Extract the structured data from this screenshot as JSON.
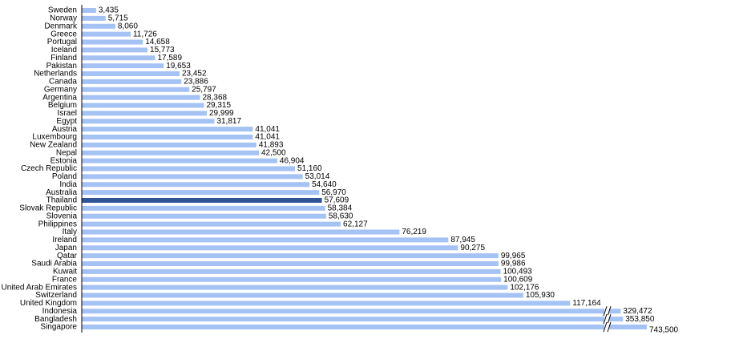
{
  "chart_data": {
    "type": "bar",
    "orientation": "horizontal",
    "categories": [
      "Sweden",
      "Norway",
      "Denmark",
      "Greece",
      "Portugal",
      "Iceland",
      "Finland",
      "Pakistan",
      "Netherlands",
      "Canada",
      "Germany",
      "Argentina",
      "Belgium",
      "Israel",
      "Egypt",
      "Austria",
      "Luxembourg",
      "New Zealand",
      "Nepal",
      "Estonia",
      "Czech Republic",
      "Poland",
      "India",
      "Australia",
      "Thailand",
      "Slovak Republic",
      "Slovenia",
      "Philippines",
      "Italy",
      "Ireland",
      "Japan",
      "Qatar",
      "Saudi Arabia",
      "Kuwait",
      "France",
      "United Arab Emirates",
      "Switzerland",
      "United Kingdom",
      "Indonesia",
      "Bangladesh",
      "Singapore"
    ],
    "values": [
      3435,
      5715,
      8060,
      11726,
      14658,
      15773,
      17589,
      19653,
      23452,
      23886,
      25797,
      28368,
      29315,
      29999,
      31817,
      41041,
      41041,
      41893,
      42500,
      46904,
      51160,
      53014,
      54640,
      56970,
      57609,
      58384,
      58630,
      62127,
      76219,
      87945,
      90275,
      99965,
      99986,
      100493,
      100609,
      102176,
      105930,
      117164,
      329472,
      353850,
      743500
    ],
    "value_labels": [
      "3,435",
      "5,715",
      "8,060",
      "11,726",
      "14,658",
      "15,773",
      "17,589",
      "19,653",
      "23,452",
      "23,886",
      "25,797",
      "28,368",
      "29,315",
      "29,999",
      "31,817",
      "41,041",
      "41,041",
      "41,893",
      "42,500",
      "46,904",
      "51,160",
      "53,014",
      "54,640",
      "56,970",
      "57,609",
      "58,384",
      "58,630",
      "62,127",
      "76,219",
      "87,945",
      "90,275",
      "99,965",
      "99,986",
      "100,493",
      "100,609",
      "102,176",
      "105,930",
      "117,164",
      "329,472",
      "353,850",
      "743,500"
    ],
    "colors": [
      "#a4c2f4",
      "#a4c2f4",
      "#a4c2f4",
      "#a4c2f4",
      "#a4c2f4",
      "#a4c2f4",
      "#a4c2f4",
      "#a4c2f4",
      "#a4c2f4",
      "#a4c2f4",
      "#a4c2f4",
      "#a4c2f4",
      "#a4c2f4",
      "#a4c2f4",
      "#a4c2f4",
      "#a4c2f4",
      "#a4c2f4",
      "#a4c2f4",
      "#a4c2f4",
      "#a4c2f4",
      "#a4c2f4",
      "#a4c2f4",
      "#a4c2f4",
      "#a4c2f4",
      "#2f5597",
      "#a4c2f4",
      "#a4c2f4",
      "#a4c2f4",
      "#a4c2f4",
      "#a4c2f4",
      "#a4c2f4",
      "#a4c2f4",
      "#a4c2f4",
      "#a4c2f4",
      "#a4c2f4",
      "#a4c2f4",
      "#a4c2f4",
      "#a4c2f4",
      "#a4c2f4",
      "#a4c2f4",
      "#a4c2f4"
    ],
    "xlim": [
      0,
      120000
    ],
    "axis_break": true
  }
}
